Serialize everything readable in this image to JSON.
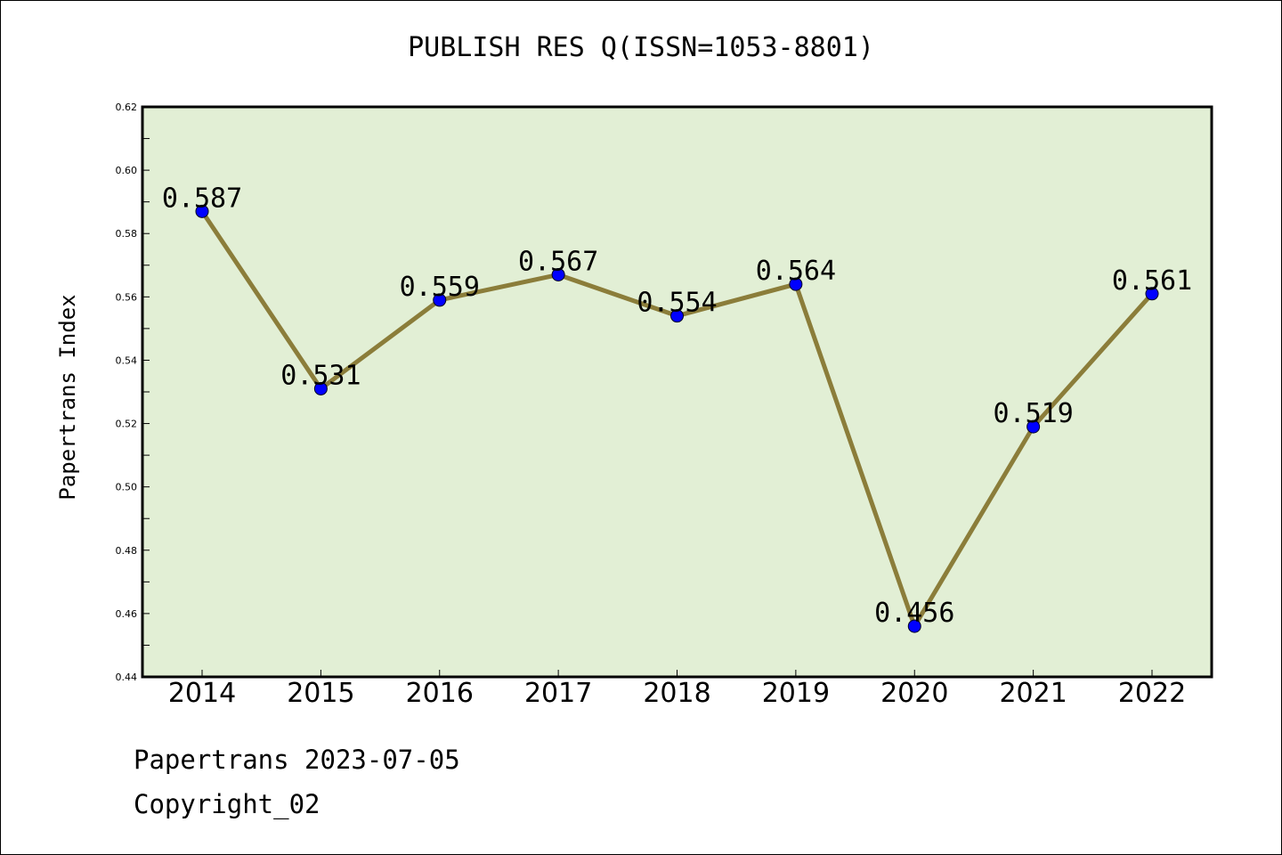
{
  "footer": {
    "line1": "Papertrans 2023-07-05",
    "line2": "Copyright_02"
  },
  "chart_data": {
    "type": "line",
    "title": "PUBLISH RES Q(ISSN=1053-8801)",
    "xlabel": "",
    "ylabel": "Papertrans Index",
    "categories": [
      "2014",
      "2015",
      "2016",
      "2017",
      "2018",
      "2019",
      "2020",
      "2021",
      "2022"
    ],
    "series": [
      {
        "values": [
          0.587,
          0.531,
          0.559,
          0.567,
          0.554,
          0.564,
          0.456,
          0.519,
          0.561
        ]
      }
    ],
    "data_labels": [
      "0.587",
      "0.531",
      "0.559",
      "0.567",
      "0.554",
      "0.564",
      "0.456",
      "0.519",
      "0.561"
    ],
    "ylim": [
      0.44,
      0.62
    ],
    "yticks": [
      "0.44",
      "0.46",
      "0.48",
      "0.50",
      "0.52",
      "0.54",
      "0.56",
      "0.58",
      "0.60",
      "0.62"
    ],
    "grid": false,
    "colors": {
      "plot_background": "#e2efd5",
      "line": "#8b7d3a",
      "marker": "#0000ff"
    }
  }
}
